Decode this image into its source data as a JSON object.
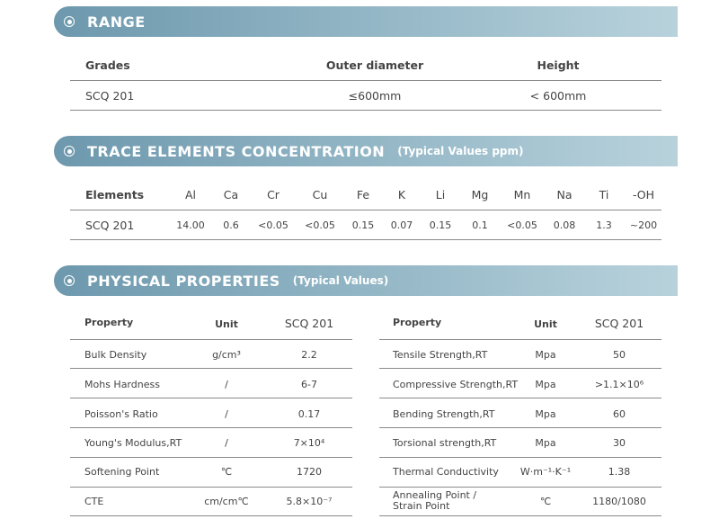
{
  "range": {
    "title": "RANGE",
    "headers": [
      "Grades",
      "Outer diameter",
      "Height"
    ],
    "row": [
      "SCQ 201",
      "≤600mm",
      "< 600mm"
    ]
  },
  "trace": {
    "title": "TRACE ELEMENTS CONCENTRATION",
    "subtitle": "(Typical Values ppm)",
    "headers": [
      "Elements",
      "Al",
      "Ca",
      "Cr",
      "Cu",
      "Fe",
      "K",
      "Li",
      "Mg",
      "Mn",
      "Na",
      "Ti",
      "-OH"
    ],
    "row": [
      "SCQ 201",
      "14.00",
      "0.6",
      "<0.05",
      "<0.05",
      "0.15",
      "0.07",
      "0.15",
      "0.1",
      "<0.05",
      "0.08",
      "1.3",
      "~200"
    ]
  },
  "physical": {
    "title": "PHYSICAL PROPERTIES",
    "subtitle": "(Typical Values)",
    "left": {
      "headers": [
        "Property",
        "Unit",
        "SCQ 201"
      ],
      "rows": [
        [
          "Bulk Density",
          "g/cm³",
          "2.2"
        ],
        [
          "Mohs Hardness",
          "/",
          "6-7"
        ],
        [
          "Poisson's Ratio",
          "/",
          "0.17"
        ],
        [
          "Young's Modulus,RT",
          "/",
          "7×10⁴"
        ],
        [
          "Softening Point",
          "℃",
          "1720"
        ],
        [
          "CTE",
          "cm/cm℃",
          "5.8×10⁻⁷"
        ]
      ]
    },
    "right": {
      "headers": [
        "Property",
        "Unit",
        "SCQ 201"
      ],
      "rows": [
        [
          "Tensile Strength,RT",
          "Mpa",
          "50"
        ],
        [
          "Compressive Strength,RT",
          "Mpa",
          ">1.1×10⁶"
        ],
        [
          "Bending Strength,RT",
          "Mpa",
          "60"
        ],
        [
          "Torsional strength,RT",
          "Mpa",
          "30"
        ],
        [
          "Thermal Conductivity",
          "W·m⁻¹·K⁻¹",
          "1.38"
        ],
        [
          "Annealing Point / Strain Point",
          "℃",
          "1180/1080"
        ]
      ]
    }
  }
}
